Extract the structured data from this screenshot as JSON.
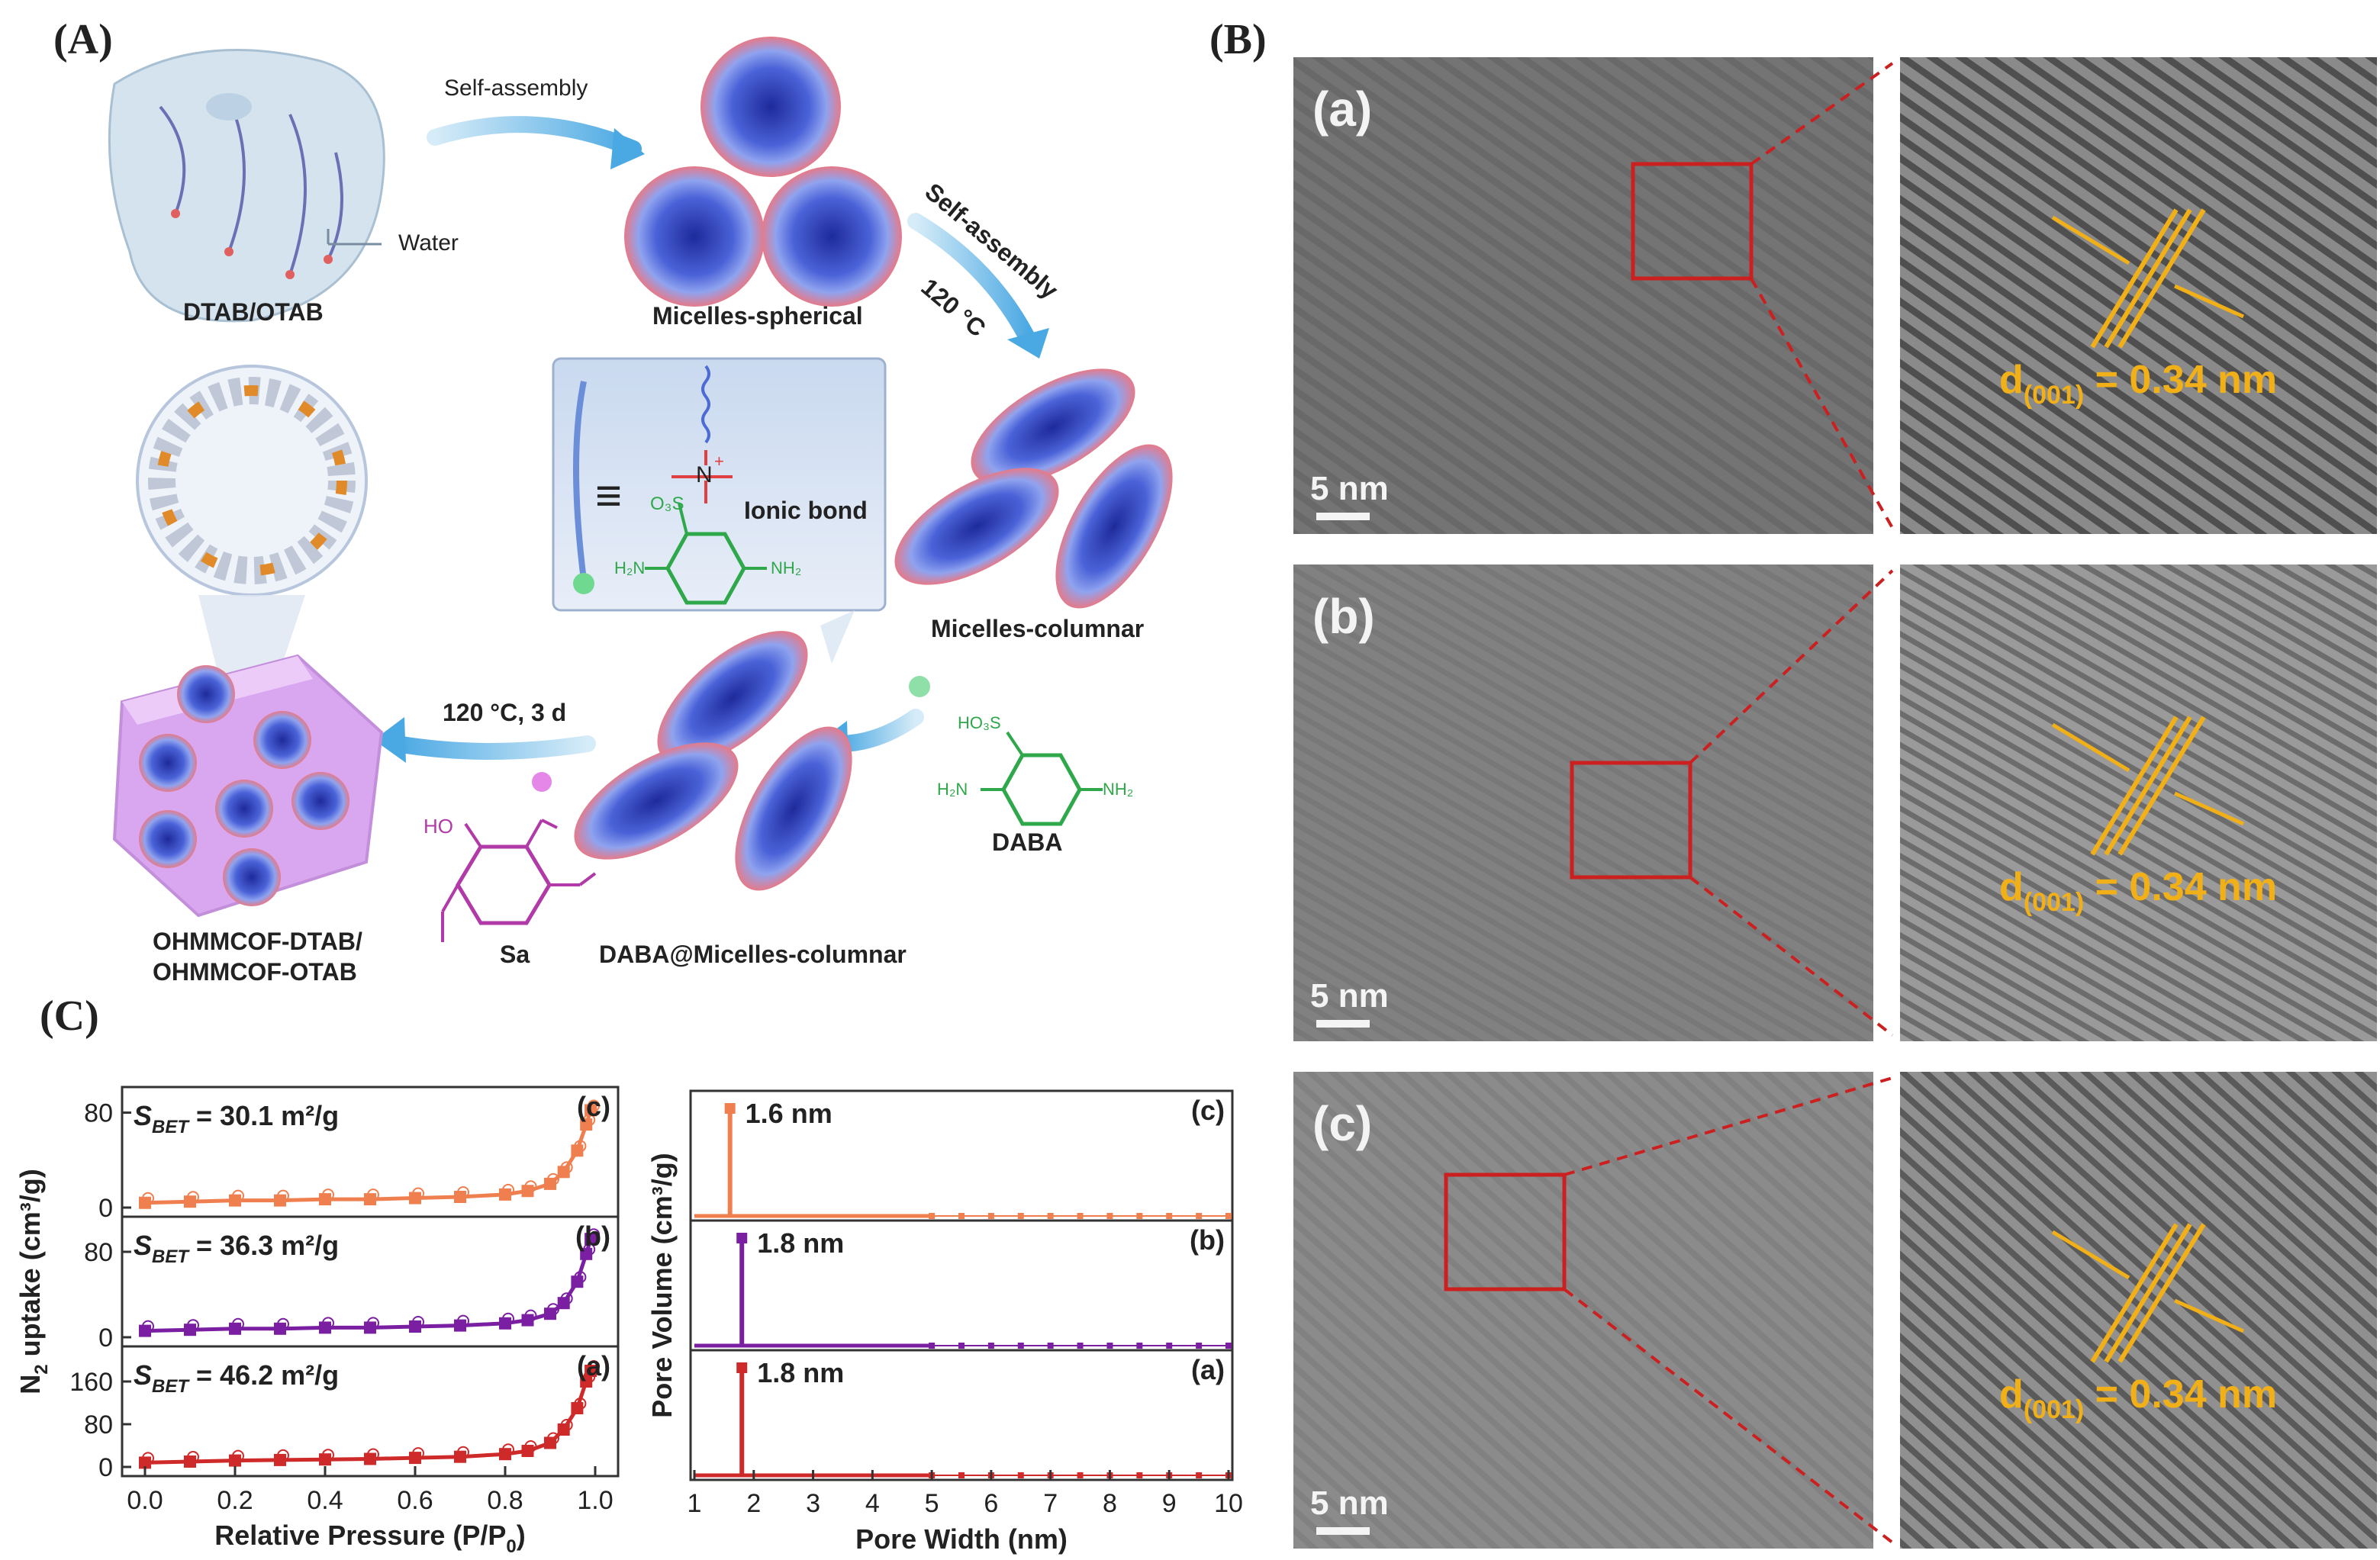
{
  "panels": {
    "A": "(A)",
    "B": "(B)",
    "C": "(C)"
  },
  "schematic": {
    "self_assembly_1": "Self-assembly",
    "self_assembly_2": "Self-assembly",
    "water": "Water",
    "dtab_otab": "DTAB/OTAB",
    "micelles_spherical": "Micelles-spherical",
    "temp_120": "120 °C",
    "micelles_columnar": "Micelles-columnar",
    "ionic_bond": "Ionic bond",
    "equiv": "≡",
    "n_plus": "N",
    "so3_minus": "O₃S",
    "h2n_left": "H₂N",
    "nh2_right": "NH₂",
    "cond_120_3d": "120 °C, 3 d",
    "dab_a_label": "DABA",
    "hso3": "HO₃S",
    "daba_h2n": "H₂N",
    "daba_nh2": "NH₂",
    "sa_label": "Sa",
    "ho": "HO",
    "daba_micelles": "DABA@Micelles-columnar",
    "ohmmcof_1": "OHMMCOF-DTAB/",
    "ohmmcof_2": "OHMMCOF-OTAB"
  },
  "tem": {
    "rows": [
      {
        "letter": "(a)",
        "scale": "5 nm",
        "d_sub": "(001)",
        "d_value": " = 0.34 nm"
      },
      {
        "letter": "(b)",
        "scale": "5 nm",
        "d_sub": "(001)",
        "d_value": " = 0.34 nm"
      },
      {
        "letter": "(c)",
        "scale": "5 nm",
        "d_sub": "(001)",
        "d_value": " = 0.34 nm"
      }
    ],
    "d_prefix": "d"
  },
  "chart_data": [
    {
      "type": "scatter",
      "xlabel": "Relative Pressure (P/P",
      "xlabel_sub": "0",
      "xlabel_end": ")",
      "ylabel": "N",
      "ylabel_sub": "2",
      "ylabel_end": " uptake (cm³/g)",
      "xlim": [
        0.0,
        1.0
      ],
      "xticks": [
        "0.0",
        "0.2",
        "0.4",
        "0.6",
        "0.8",
        "1.0"
      ],
      "series": [
        {
          "name": "(c)",
          "color": "#f07f4f",
          "sbet_prefix": "S",
          "sbet_sub": "BET",
          "sbet_value": " = 30.1 m²/g",
          "yticks": [
            "80",
            "0"
          ],
          "ylim": [
            0,
            90
          ],
          "x": [
            0.0,
            0.1,
            0.2,
            0.3,
            0.4,
            0.5,
            0.6,
            0.7,
            0.8,
            0.85,
            0.9,
            0.93,
            0.96,
            0.98,
            0.99
          ],
          "y": [
            4,
            5,
            6,
            6,
            7,
            7,
            8,
            9,
            11,
            14,
            20,
            30,
            48,
            70,
            82
          ]
        },
        {
          "name": "(b)",
          "color": "#7b1fa2",
          "sbet_prefix": "S",
          "sbet_sub": "BET",
          "sbet_value": " = 36.3 m²/g",
          "yticks": [
            "80",
            "0"
          ],
          "ylim": [
            0,
            100
          ],
          "x": [
            0.0,
            0.1,
            0.2,
            0.3,
            0.4,
            0.5,
            0.6,
            0.7,
            0.8,
            0.85,
            0.9,
            0.93,
            0.96,
            0.98,
            0.99
          ],
          "y": [
            6,
            7,
            8,
            8,
            9,
            9,
            10,
            11,
            13,
            16,
            22,
            32,
            52,
            78,
            92
          ]
        },
        {
          "name": "(a)",
          "color": "#cf2a2a",
          "sbet_prefix": "S",
          "sbet_sub": "BET",
          "sbet_value": " = 46.2 m²/g",
          "yticks": [
            "160",
            "80",
            "0"
          ],
          "ylim": [
            0,
            200
          ],
          "x": [
            0.0,
            0.1,
            0.2,
            0.3,
            0.4,
            0.5,
            0.6,
            0.7,
            0.8,
            0.85,
            0.9,
            0.93,
            0.96,
            0.98,
            0.99
          ],
          "y": [
            8,
            10,
            12,
            13,
            14,
            15,
            17,
            19,
            24,
            30,
            45,
            70,
            110,
            160,
            180
          ]
        }
      ]
    },
    {
      "type": "line",
      "xlabel": "Pore Width (nm)",
      "ylabel": "Pore Volume (cm³/g)",
      "xlim": [
        1,
        10
      ],
      "xticks": [
        "1",
        "2",
        "3",
        "4",
        "5",
        "6",
        "7",
        "8",
        "9",
        "10"
      ],
      "series": [
        {
          "name": "(c)",
          "color": "#f07f4f",
          "peak_x": 1.6,
          "peak_label": "1.6 nm"
        },
        {
          "name": "(b)",
          "color": "#7b1fa2",
          "peak_x": 1.8,
          "peak_label": "1.8 nm"
        },
        {
          "name": "(a)",
          "color": "#cf2a2a",
          "peak_x": 1.8,
          "peak_label": "1.8 nm"
        }
      ]
    }
  ]
}
